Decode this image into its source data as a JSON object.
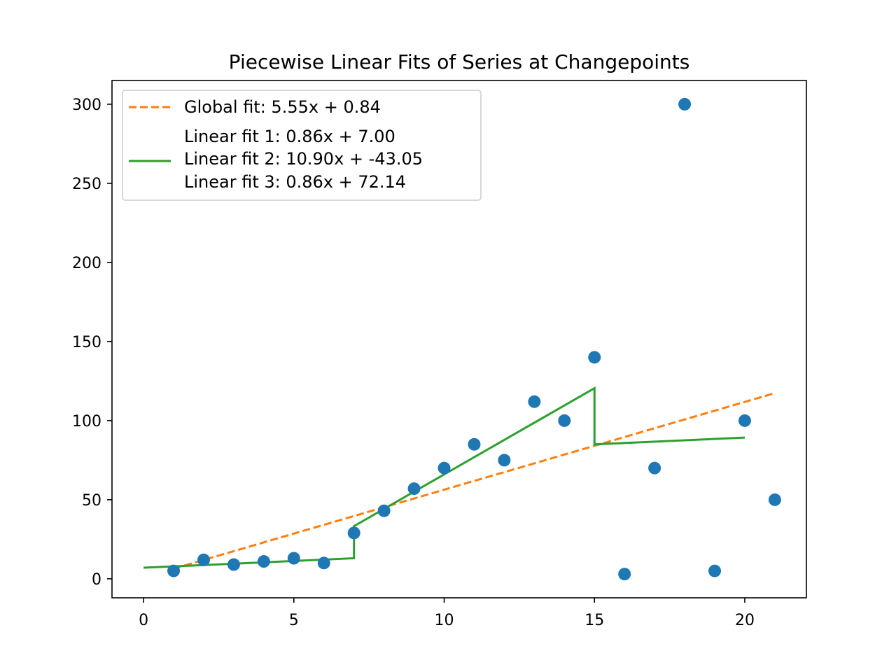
{
  "chart_data": {
    "type": "scatter",
    "title": "Piecewise Linear Fits of Series at Changepoints",
    "xlabel": "",
    "ylabel": "",
    "xlim": [
      -1.05,
      22.05
    ],
    "ylim": [
      -12,
      315
    ],
    "x_ticks": [
      0,
      5,
      10,
      15,
      20
    ],
    "y_ticks": [
      0,
      50,
      100,
      150,
      200,
      250,
      300
    ],
    "grid": false,
    "legend_position": "top-left",
    "points": {
      "color": "#1f77b4",
      "x": [
        1,
        2,
        3,
        4,
        5,
        6,
        7,
        8,
        9,
        10,
        11,
        12,
        13,
        14,
        15,
        16,
        17,
        18,
        19,
        20,
        21
      ],
      "y": [
        5,
        12,
        9,
        11,
        13,
        10,
        29,
        43,
        57,
        70,
        85,
        75,
        112,
        100,
        140,
        3,
        70,
        300,
        5,
        100,
        50
      ]
    },
    "global_fit": {
      "label": "Global fit:  5.55x +  0.84",
      "color": "#ff7f0e",
      "style": "dashed",
      "slope": 5.55,
      "intercept": 0.84,
      "x_range": [
        1,
        21
      ]
    },
    "segment_fits": {
      "color": "#2ca02c",
      "style": "solid",
      "labels": [
        "Linear fit 1:  0.86x +  7.00",
        "Linear fit 2:  10.90x + -43.05",
        "Linear fit 3:  0.86x +  72.14"
      ],
      "polyline": [
        [
          0,
          7.0
        ],
        [
          7,
          13.0
        ],
        [
          7,
          33.3
        ],
        [
          15,
          120.5
        ],
        [
          15,
          85.0
        ],
        [
          20,
          89.3
        ]
      ]
    }
  }
}
